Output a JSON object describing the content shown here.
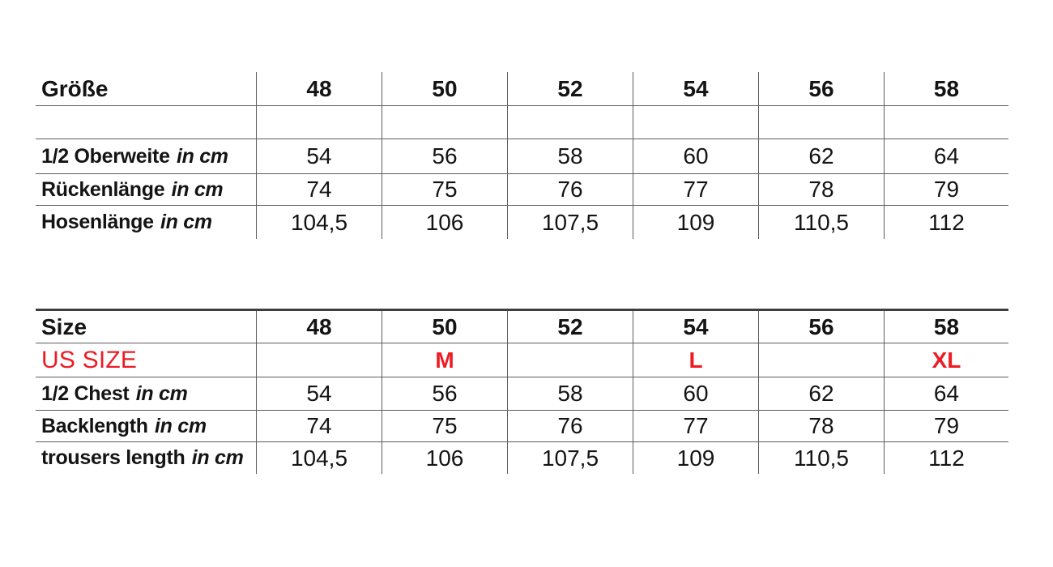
{
  "colors": {
    "background": "#ffffff",
    "grid_line": "#5d5d5d",
    "thick_top_border": "#3e3e3e",
    "text": "#141414",
    "us_size_red": "#ed1c24"
  },
  "table_de": {
    "header": {
      "label": "Größe",
      "sizes": [
        "48",
        "50",
        "52",
        "54",
        "56",
        "58"
      ]
    },
    "rows": [
      {
        "label": "1/2 Oberweite",
        "unit": "in cm",
        "values": [
          "54",
          "56",
          "58",
          "60",
          "62",
          "64"
        ]
      },
      {
        "label": "Rückenlänge",
        "unit": "in cm",
        "values": [
          "74",
          "75",
          "76",
          "77",
          "78",
          "79"
        ]
      },
      {
        "label": "Hosenlänge",
        "unit": "in cm",
        "values": [
          "104,5",
          "106",
          "107,5",
          "109",
          "110,5",
          "112"
        ]
      }
    ]
  },
  "table_en": {
    "header": {
      "label": "Size",
      "sizes": [
        "48",
        "50",
        "52",
        "54",
        "56",
        "58"
      ]
    },
    "us_row": {
      "label": "US SIZE",
      "values": [
        "",
        "M",
        "",
        "L",
        "",
        "XL"
      ]
    },
    "rows": [
      {
        "label": "1/2 Chest",
        "unit": "in cm",
        "values": [
          "54",
          "56",
          "58",
          "60",
          "62",
          "64"
        ]
      },
      {
        "label": "Backlength",
        "unit": "in cm",
        "values": [
          "74",
          "75",
          "76",
          "77",
          "78",
          "79"
        ]
      },
      {
        "label": "trousers length",
        "unit": "in cm",
        "values": [
          "104,5",
          "106",
          "107,5",
          "109",
          "110,5",
          "112"
        ]
      }
    ]
  }
}
